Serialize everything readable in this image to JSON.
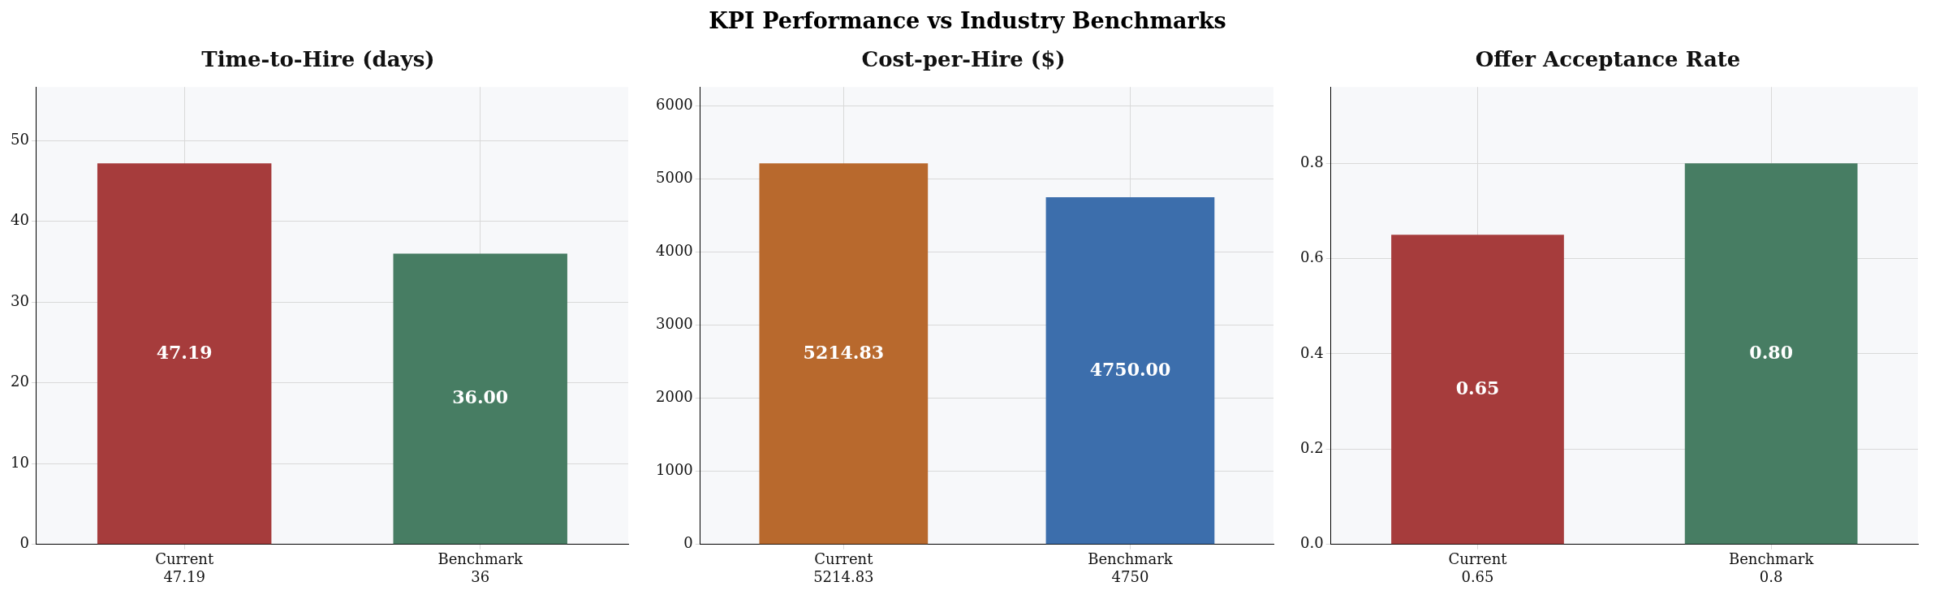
{
  "chart_data": [
    {
      "type": "other",
      "title": "KPI Performance vs Industry Benchmarks"
    },
    {
      "type": "bar",
      "title": "Time-to-Hire (days)",
      "categories": [
        "Current\n47.19",
        "Benchmark\n36"
      ],
      "values": [
        47.19,
        36
      ],
      "colors": [
        "#a63c3c",
        "#477d63"
      ],
      "value_labels": [
        "47.19",
        "36.00"
      ],
      "ylim": [
        0,
        56.63
      ],
      "yticks": [
        0,
        10,
        20,
        30,
        40,
        50
      ],
      "grid": true
    },
    {
      "type": "bar",
      "title": "Cost-per-Hire ($)",
      "categories": [
        "Current\n5214.83",
        "Benchmark\n4750"
      ],
      "values": [
        5214.83,
        4750
      ],
      "colors": [
        "#b8692d",
        "#3c6eac"
      ],
      "value_labels": [
        "5214.83",
        "4750.00"
      ],
      "ylim": [
        0,
        6257.8
      ],
      "yticks": [
        0,
        1000,
        2000,
        3000,
        4000,
        5000,
        6000
      ],
      "grid": true
    },
    {
      "type": "bar",
      "title": "Offer Acceptance Rate",
      "categories": [
        "Current\n0.65",
        "Benchmark\n0.8"
      ],
      "values": [
        0.65,
        0.8
      ],
      "colors": [
        "#a63c3c",
        "#477d63"
      ],
      "value_labels": [
        "0.65",
        "0.80"
      ],
      "ylim": [
        0,
        0.96
      ],
      "yticks": [
        {
          "value": 0,
          "label": "0.0"
        },
        0.2,
        0.4,
        0.6,
        0.8
      ],
      "grid": true
    }
  ]
}
